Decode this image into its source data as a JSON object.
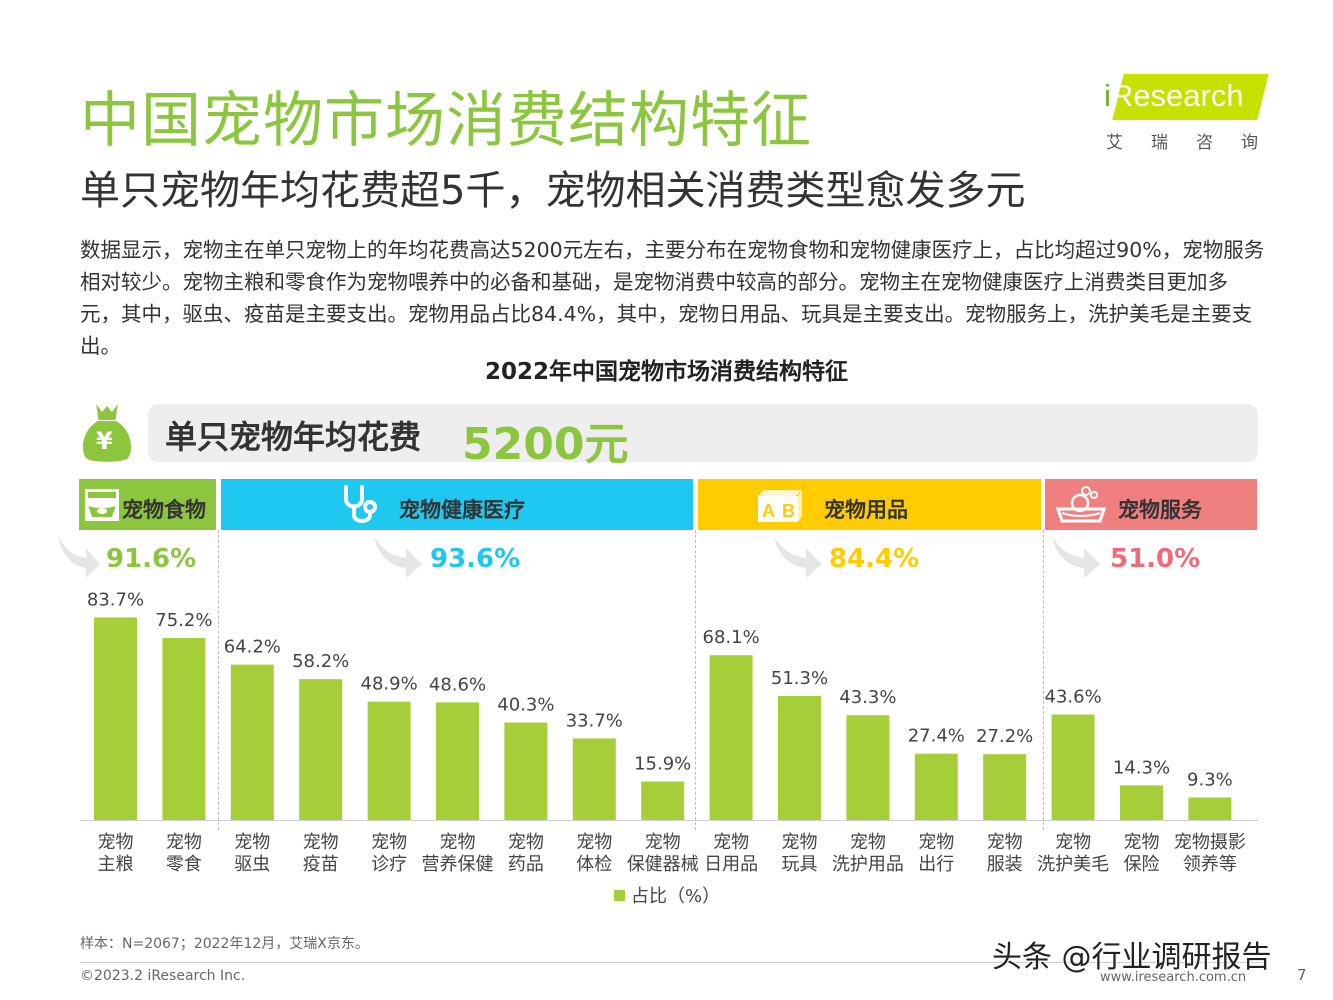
{
  "header": {
    "title": "中国宠物市场消费结构特征",
    "subtitle": "单只宠物年均花费超5千，宠物相关消费类型愈发多元",
    "logo_text_i": "i",
    "logo_text_rest": "Research",
    "logo_cn": "艾瑞咨询"
  },
  "description": "数据显示，宠物主在单只宠物上的年均花费高达5200元左右，主要分布在宠物食物和宠物健康医疗上，占比均超过90%，宠物服务相对较少。宠物主粮和零食作为宠物喂养中的必备和基础，是宠物消费中较高的部分。宠物主在宠物健康医疗上消费类目更加多元，其中，驱虫、疫苗是主要支出。宠物用品占比84.4%，其中，宠物日用品、玩具是主要支出。宠物服务上，洗护美毛是主要支出。",
  "spend": {
    "label": "单只宠物年均花费",
    "value": "5200元",
    "icon_symbol": "¥"
  },
  "categories": [
    {
      "name": "宠物食物",
      "pct": "91.6%",
      "color": "#8cc63f",
      "pct_color": "#8cc63f",
      "icon": "pet-bowl-icon"
    },
    {
      "name": "宠物健康医疗",
      "pct": "93.6%",
      "color": "#1ec8f0",
      "pct_color": "#1ec8f0",
      "icon": "stethoscope-icon"
    },
    {
      "name": "宠物用品",
      "pct": "84.4%",
      "color": "#ffcc00",
      "pct_color": "#ffcc00",
      "icon": "ab-blocks-icon"
    },
    {
      "name": "宠物服务",
      "pct": "51.0%",
      "color": "#f08080",
      "pct_color": "#f06a7a",
      "icon": "pet-bath-icon"
    }
  ],
  "chart_data": {
    "type": "bar",
    "title": "2022年中国宠物市场消费结构特征",
    "categories": [
      [
        "宠物",
        "主粮"
      ],
      [
        "宠物",
        "零食"
      ],
      [
        "宠物",
        "驱虫"
      ],
      [
        "宠物",
        "疫苗"
      ],
      [
        "宠物",
        "诊疗"
      ],
      [
        "宠物",
        "营养保健"
      ],
      [
        "宠物",
        "药品"
      ],
      [
        "宠物",
        "体检"
      ],
      [
        "宠物",
        "保健器械"
      ],
      [
        "宠物",
        "日用品"
      ],
      [
        "宠物",
        "玩具"
      ],
      [
        "宠物",
        "洗护用品"
      ],
      [
        "宠物",
        "出行"
      ],
      [
        "宠物",
        "服装"
      ],
      [
        "宠物",
        "洗护美毛"
      ],
      [
        "宠物",
        "保险"
      ],
      [
        "宠物摄影",
        "领养等"
      ]
    ],
    "series": [
      {
        "name": "占比（%）",
        "values": [
          83.7,
          75.2,
          64.2,
          58.2,
          48.9,
          48.6,
          40.3,
          33.7,
          15.9,
          68.1,
          51.3,
          43.3,
          27.4,
          27.2,
          43.6,
          14.3,
          9.3
        ],
        "labels": [
          "83.7%",
          "75.2%",
          "64.2%",
          "58.2%",
          "48.9%",
          "48.6%",
          "40.3%",
          "33.7%",
          "15.9%",
          "68.1%",
          "51.3%",
          "43.3%",
          "27.4%",
          "27.2%",
          "43.6%",
          "14.3%",
          "9.3%"
        ],
        "color": "#a6ce39"
      }
    ],
    "groups": [
      {
        "category": "宠物食物",
        "count": 2
      },
      {
        "category": "宠物健康医疗",
        "count": 7
      },
      {
        "category": "宠物用品",
        "count": 5
      },
      {
        "category": "宠物服务",
        "count": 3
      }
    ],
    "ylim": [
      0,
      100
    ],
    "grid": false,
    "legend": "bottom"
  },
  "legend_label": "占比（%）",
  "footer": {
    "note": "样本：N=2067；2022年12月，艾瑞X京东。",
    "copyright": "©2023.2 iResearch Inc.",
    "website": "www.iresearch.com.cn",
    "page": "7",
    "watermark": "头条 @行业调研报告"
  }
}
